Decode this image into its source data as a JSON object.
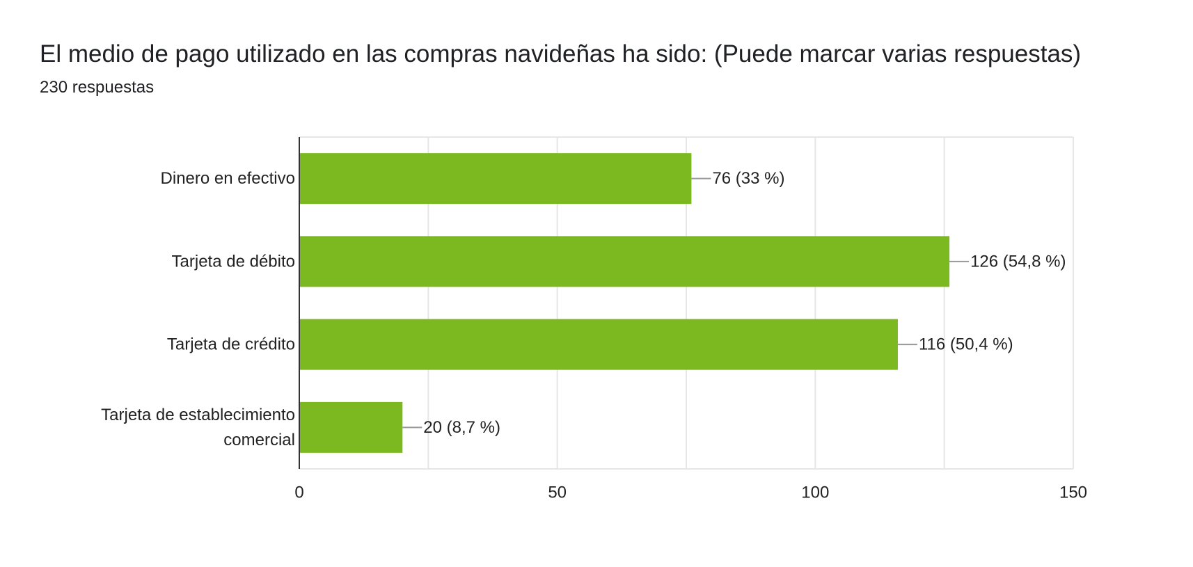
{
  "header": {
    "title": "El medio de pago utilizado en las compras navideñas ha sido:  (Puede marcar varias respuestas)",
    "subtitle": "230 respuestas"
  },
  "colors": {
    "bar": "#7cb921",
    "grid": "#e6e6e6",
    "axis": "#333333",
    "leader": "#999999",
    "text": "#222222"
  },
  "chart_data": {
    "type": "bar",
    "orientation": "horizontal",
    "title": "El medio de pago utilizado en las compras navideñas ha sido:  (Puede marcar varias respuestas)",
    "subtitle": "230 respuestas",
    "categories": [
      [
        "Dinero en efectivo"
      ],
      [
        "Tarjeta de débito"
      ],
      [
        "Tarjeta de crédito"
      ],
      [
        "Tarjeta de establecimiento",
        "comercial"
      ]
    ],
    "values": [
      76,
      126,
      116,
      20
    ],
    "data_labels": [
      "76 (33 %)",
      "126 (54,8 %)",
      "116 (50,4 %)",
      "20 (8,7 %)"
    ],
    "xlim": [
      0,
      150
    ],
    "xticks": [
      0,
      50,
      100,
      150
    ],
    "xtick_labels": [
      "0",
      "50",
      "100",
      "150"
    ],
    "grid": true
  }
}
